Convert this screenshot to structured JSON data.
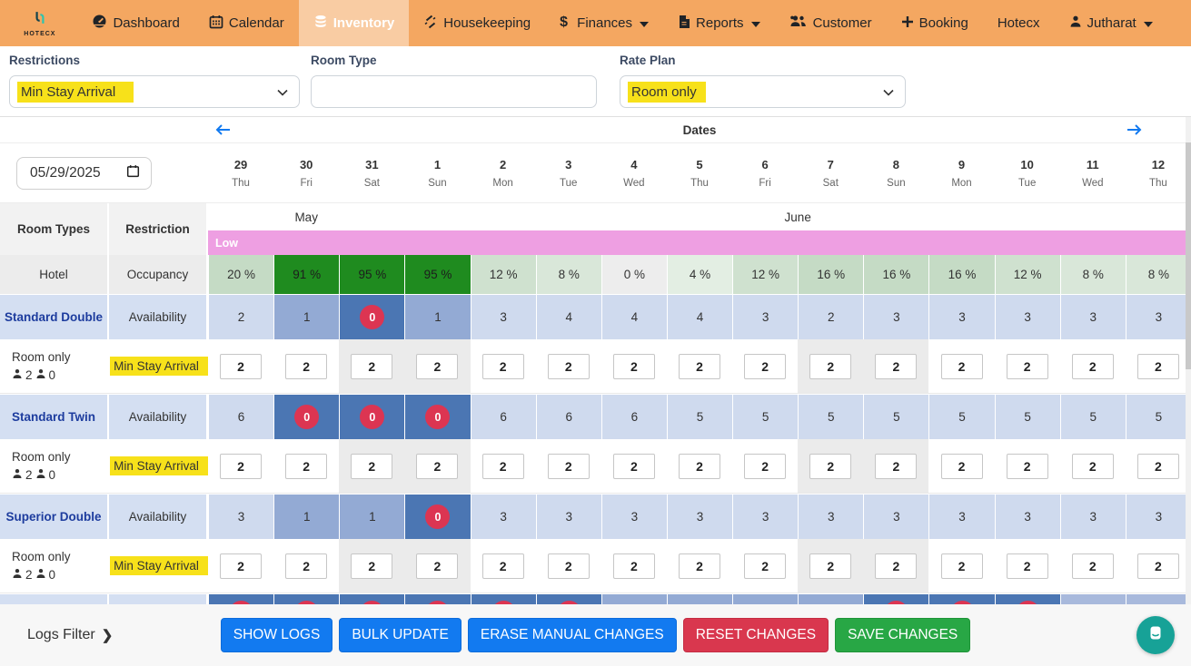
{
  "colors": {
    "navbar_bg": "#f4a761",
    "accent_blue": "#127af0",
    "button_red": "#d9374e",
    "button_green": "#28a745",
    "highlight_yellow": "#f7e11a",
    "season_pink": "#ee9fe2",
    "occupancy_dark_green": "#1f8b1f",
    "availability_light_blue": "#cfdaee",
    "availability_medium_blue": "#93aad4",
    "availability_dark_blue": "#4b76b3",
    "zero_badge_red": "#dc3552",
    "room_name_blue": "#1d3c9e",
    "chat_teal": "#17a297"
  },
  "navbar": {
    "brand": "HOTECX",
    "items": [
      {
        "label": "Dashboard",
        "icon": "gauge-icon",
        "active": false,
        "dropdown": false
      },
      {
        "label": "Calendar",
        "icon": "calendar-icon",
        "active": false,
        "dropdown": false
      },
      {
        "label": "Inventory",
        "icon": "database-icon",
        "active": true,
        "dropdown": false
      },
      {
        "label": "Housekeeping",
        "icon": "housekeeping-icon",
        "active": false,
        "dropdown": false
      },
      {
        "label": "Finances",
        "icon": "dollar-icon",
        "active": false,
        "dropdown": true
      },
      {
        "label": "Reports",
        "icon": "report-icon",
        "active": false,
        "dropdown": true
      },
      {
        "label": "Customer",
        "icon": "customers-icon",
        "active": false,
        "dropdown": false
      },
      {
        "label": "Booking",
        "icon": "plus-icon",
        "active": false,
        "dropdown": false
      },
      {
        "label": "Hotecx",
        "icon": null,
        "active": false,
        "dropdown": false
      },
      {
        "label": "Jutharat",
        "icon": "user-icon",
        "active": false,
        "dropdown": true
      }
    ]
  },
  "filters": {
    "restrictions": {
      "label": "Restrictions",
      "value": "Min Stay Arrival"
    },
    "room_type": {
      "label": "Room Type",
      "value": "",
      "placeholder": ""
    },
    "rate_plan": {
      "label": "Rate Plan",
      "value": "Room only"
    }
  },
  "dates_bar": {
    "title": "Dates"
  },
  "date_input": {
    "value": "05/29/2025"
  },
  "calendar": {
    "columns": [
      {
        "day": "29",
        "weekday": "Thu",
        "weekend": false
      },
      {
        "day": "30",
        "weekday": "Fri",
        "weekend": false
      },
      {
        "day": "31",
        "weekday": "Sat",
        "weekend": true
      },
      {
        "day": "1",
        "weekday": "Sun",
        "weekend": true
      },
      {
        "day": "2",
        "weekday": "Mon",
        "weekend": false
      },
      {
        "day": "3",
        "weekday": "Tue",
        "weekend": false
      },
      {
        "day": "4",
        "weekday": "Wed",
        "weekend": false
      },
      {
        "day": "5",
        "weekday": "Thu",
        "weekend": false
      },
      {
        "day": "6",
        "weekday": "Fri",
        "weekend": false
      },
      {
        "day": "7",
        "weekday": "Sat",
        "weekend": true
      },
      {
        "day": "8",
        "weekday": "Sun",
        "weekend": true
      },
      {
        "day": "9",
        "weekday": "Mon",
        "weekend": false
      },
      {
        "day": "10",
        "weekday": "Tue",
        "weekend": false
      },
      {
        "day": "11",
        "weekday": "Wed",
        "weekend": false
      },
      {
        "day": "12",
        "weekday": "Thu",
        "weekend": false
      }
    ],
    "months": [
      {
        "label": "May",
        "span": 3
      },
      {
        "label": "June",
        "span": 12
      }
    ],
    "season_label": "Low"
  },
  "table": {
    "room_types_header": "Room Types",
    "restriction_header": "Restriction",
    "occupancy_row": {
      "name": "Hotel",
      "restriction": "Occupancy",
      "values": [
        "20 %",
        "91 %",
        "95 %",
        "95 %",
        "12 %",
        "8 %",
        "0 %",
        "4 %",
        "12 %",
        "16 %",
        "16 %",
        "16 %",
        "12 %",
        "8 %",
        "8 %"
      ]
    },
    "rooms": [
      {
        "name": "Standard Double",
        "availability_label": "Availability",
        "availability": [
          2,
          1,
          0,
          1,
          3,
          4,
          4,
          4,
          3,
          2,
          3,
          3,
          3,
          3,
          3
        ],
        "rate_plan_label": "Room only",
        "adults": "2",
        "children": "0",
        "restriction": "Min Stay Arrival",
        "min_stay": [
          2,
          2,
          2,
          2,
          2,
          2,
          2,
          2,
          2,
          2,
          2,
          2,
          2,
          2,
          2
        ]
      },
      {
        "name": "Standard Twin",
        "availability_label": "Availability",
        "availability": [
          6,
          0,
          0,
          0,
          6,
          6,
          6,
          5,
          5,
          5,
          5,
          5,
          5,
          5,
          5
        ],
        "rate_plan_label": "Room only",
        "adults": "2",
        "children": "0",
        "restriction": "Min Stay Arrival",
        "min_stay": [
          2,
          2,
          2,
          2,
          2,
          2,
          2,
          2,
          2,
          2,
          2,
          2,
          2,
          2,
          2
        ]
      },
      {
        "name": "Superior Double",
        "availability_label": "Availability",
        "availability": [
          3,
          1,
          1,
          0,
          3,
          3,
          3,
          3,
          3,
          3,
          3,
          3,
          3,
          3,
          3
        ],
        "rate_plan_label": "Room only",
        "adults": "2",
        "children": "0",
        "restriction": "Min Stay Arrival",
        "min_stay": [
          2,
          2,
          2,
          2,
          2,
          2,
          2,
          2,
          2,
          2,
          2,
          2,
          2,
          2,
          2
        ]
      }
    ],
    "partial_row_states": [
      "zero",
      "zero",
      "zero",
      "zero",
      "zero",
      "zero",
      "medium",
      "medium",
      "medium",
      "medium",
      "zero",
      "zero",
      "zero",
      "light2",
      "light2"
    ]
  },
  "footer": {
    "logs_filter_label": "Logs Filter",
    "buttons": [
      {
        "label": "SHOW LOGS",
        "style": "blue"
      },
      {
        "label": "BULK UPDATE",
        "style": "blue"
      },
      {
        "label": "ERASE MANUAL CHANGES",
        "style": "blue"
      },
      {
        "label": "RESET CHANGES",
        "style": "red"
      },
      {
        "label": "SAVE CHANGES",
        "style": "green"
      }
    ]
  }
}
